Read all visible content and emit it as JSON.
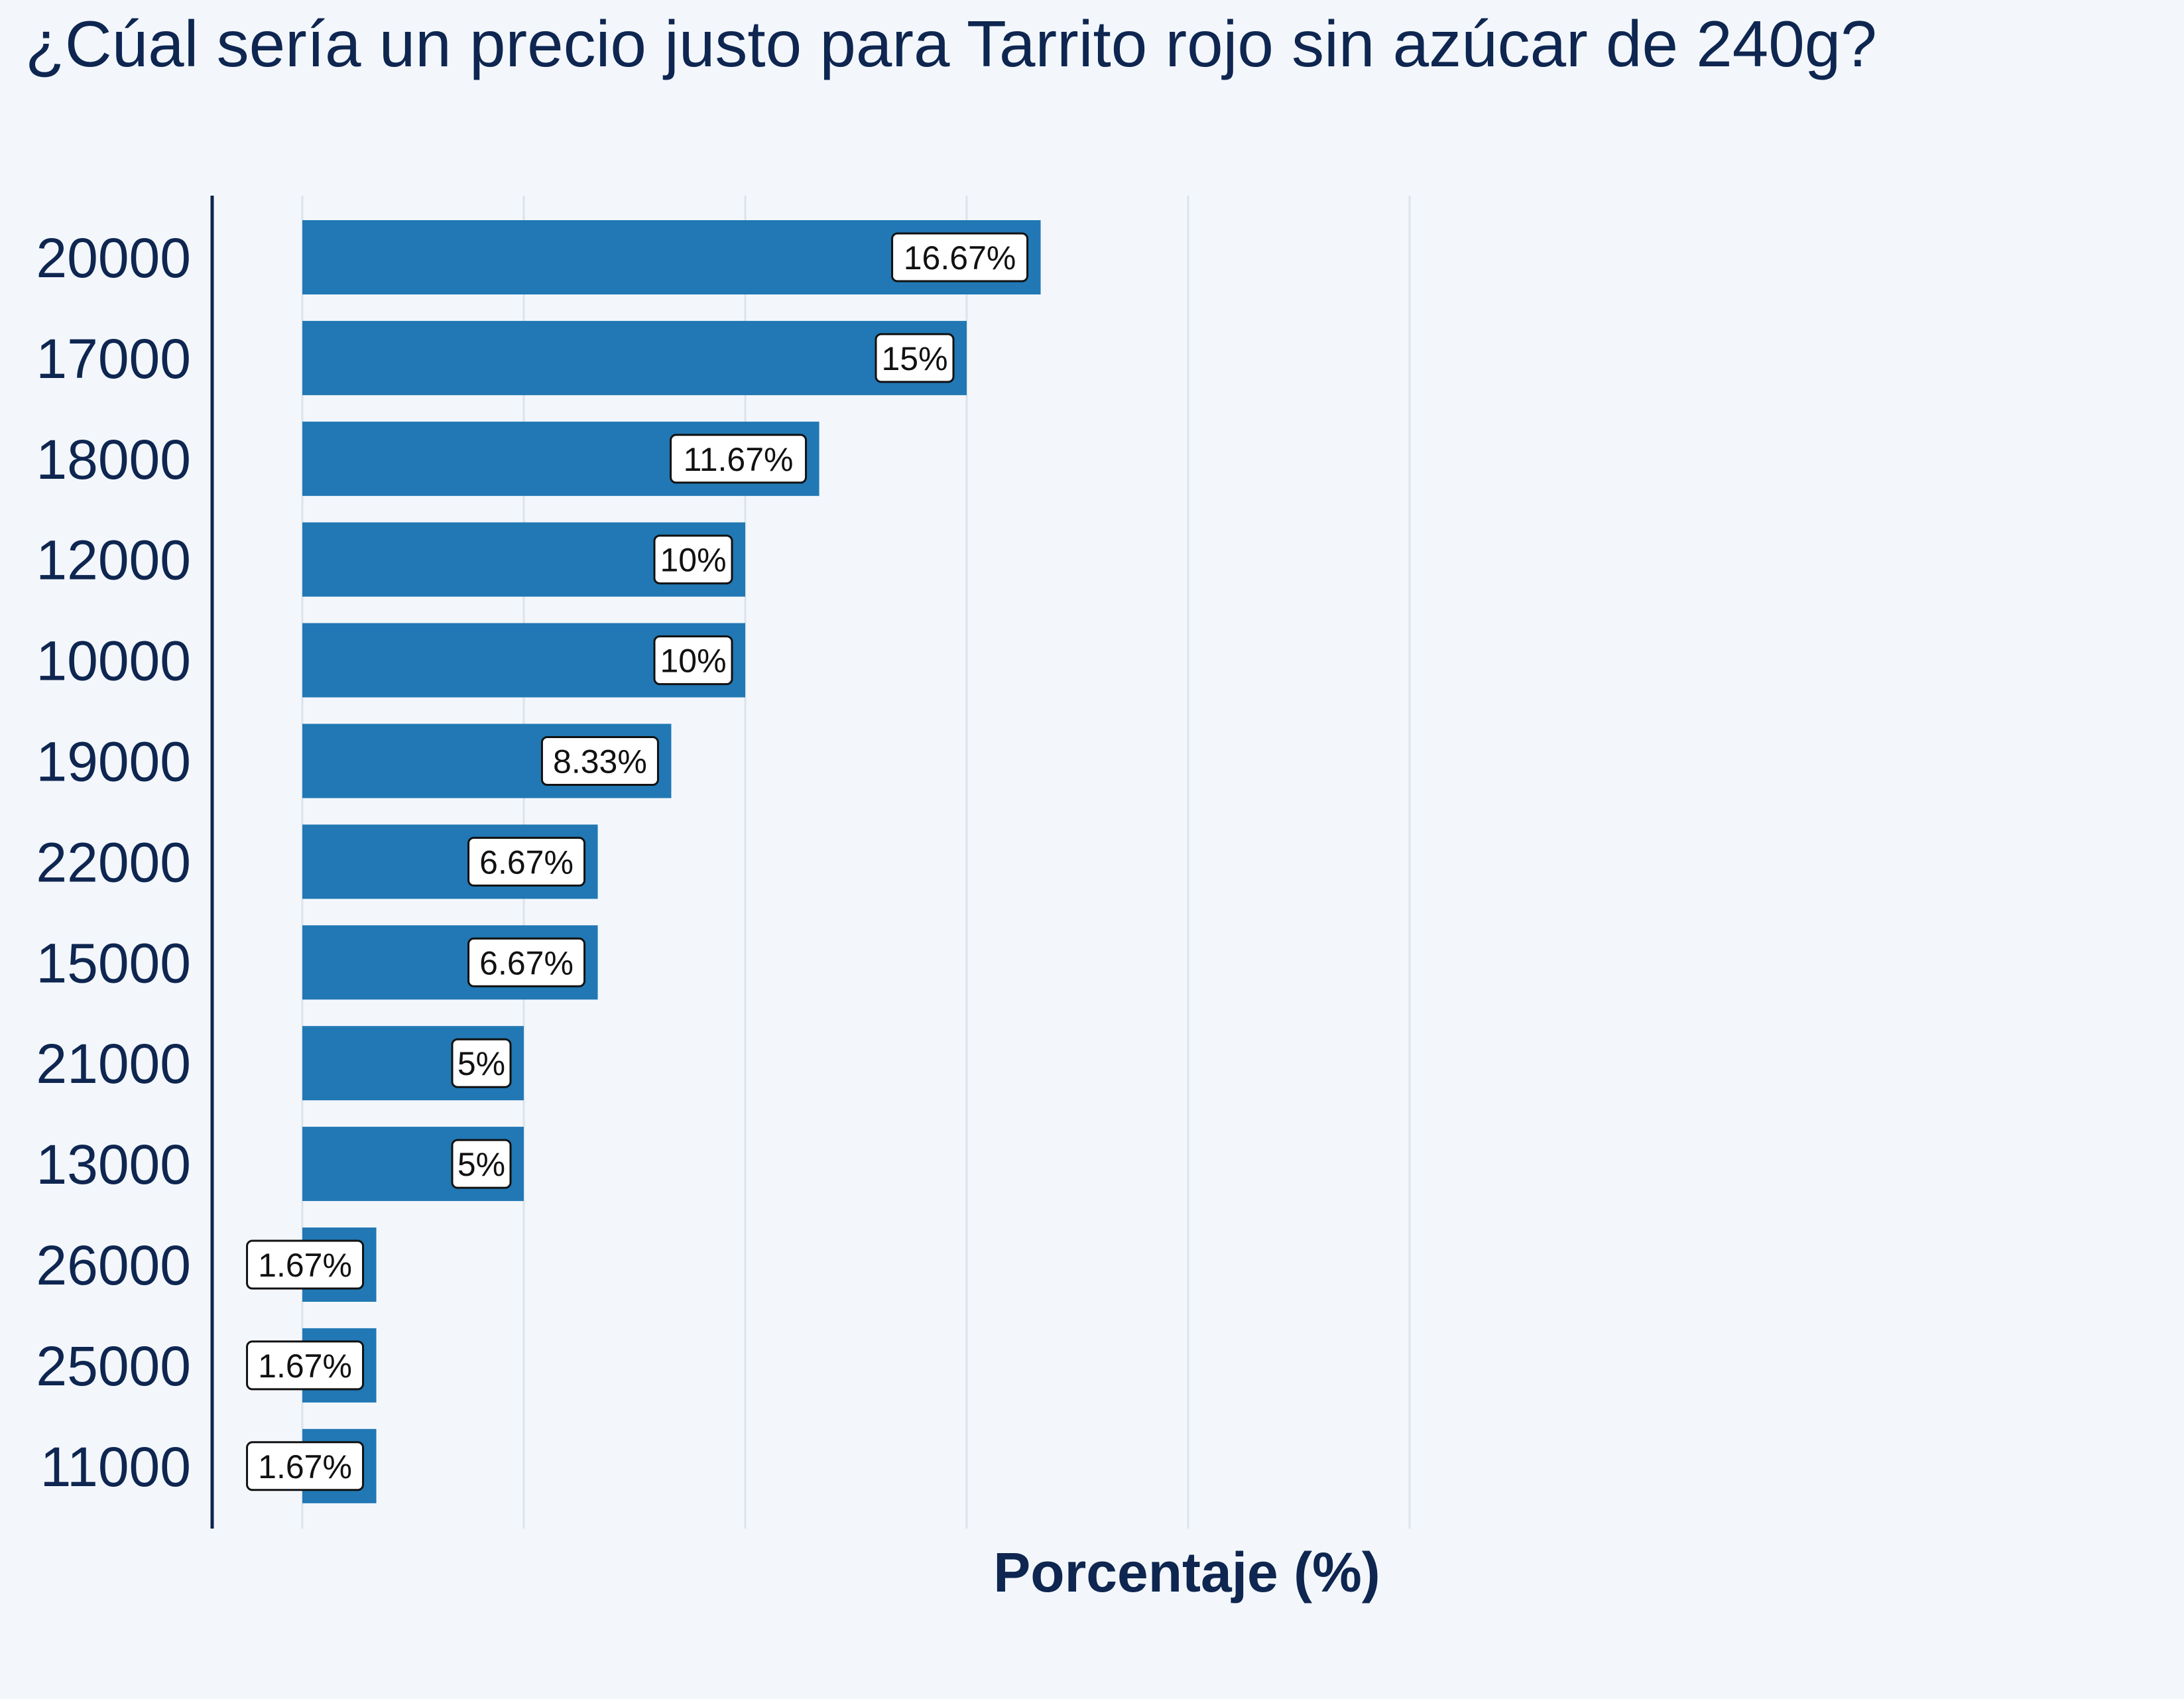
{
  "chart_data": {
    "type": "bar",
    "orientation": "horizontal",
    "title": "¿Cúal sería un precio justo para Tarrito rojo sin azúcar de 240g?",
    "xlabel": "Porcentaje (%)",
    "ylabel": "",
    "xlim": [
      0,
      25
    ],
    "grid": true,
    "categories": [
      "20000",
      "17000",
      "18000",
      "12000",
      "10000",
      "19000",
      "22000",
      "15000",
      "21000",
      "13000",
      "26000",
      "25000",
      "11000"
    ],
    "values": [
      16.67,
      15,
      11.67,
      10,
      10,
      8.33,
      6.67,
      6.67,
      5,
      5,
      1.67,
      1.67,
      1.67
    ],
    "data_labels": [
      "16.67%",
      "15%",
      "11.67%",
      "10%",
      "10%",
      "8.33%",
      "6.67%",
      "6.67%",
      "5%",
      "5%",
      "1.67%",
      "1.67%",
      "1.67%"
    ],
    "colors": {
      "bar": "#2178b4",
      "text": "#0e2650",
      "grid": "#dde3ea",
      "background": "#f3f7fc"
    }
  }
}
